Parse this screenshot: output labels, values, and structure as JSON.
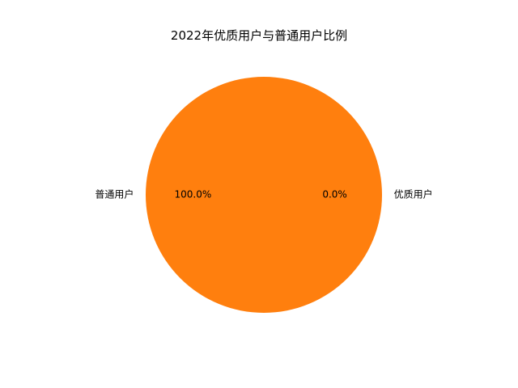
{
  "chart_data": {
    "type": "pie",
    "title": "2022年优质用户与普通用户比例",
    "slices": [
      {
        "label": "优质用户",
        "value": 0.0,
        "percent_label": "0.0%",
        "color": "#1f77b4"
      },
      {
        "label": "普通用户",
        "value": 100.0,
        "percent_label": "100.0%",
        "color": "#ff7f0e"
      }
    ],
    "start_angle_deg": 0,
    "direction": "counterclockwise",
    "legend": "none"
  }
}
